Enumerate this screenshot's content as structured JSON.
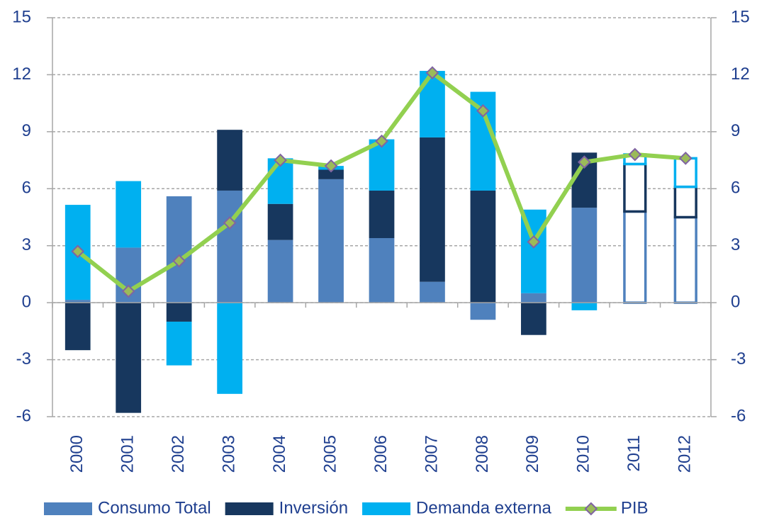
{
  "chart_data": {
    "type": "stacked-bar-line",
    "categories": [
      "2000",
      "2001",
      "2002",
      "2003",
      "2004",
      "2005",
      "2006",
      "2007",
      "2008",
      "2009",
      "2010",
      "2011",
      "2012"
    ],
    "outlined": [
      false,
      false,
      false,
      false,
      false,
      false,
      false,
      false,
      false,
      false,
      false,
      true,
      true
    ],
    "series": [
      {
        "name": "Consumo Total",
        "type": "bar",
        "color": "#4f81bd",
        "values": [
          0.15,
          2.9,
          5.6,
          5.9,
          3.3,
          6.5,
          3.4,
          1.1,
          -0.9,
          0.5,
          5.0,
          4.8,
          4.5
        ]
      },
      {
        "name": "Inversión",
        "type": "bar",
        "color": "#17375e",
        "values": [
          -2.5,
          -5.8,
          -1.0,
          3.2,
          1.9,
          0.5,
          2.5,
          7.6,
          5.9,
          -1.7,
          2.9,
          2.5,
          1.6
        ]
      },
      {
        "name": "Demanda externa",
        "type": "bar",
        "color": "#00b0f0",
        "values": [
          5.0,
          3.5,
          -2.3,
          -4.8,
          2.4,
          0.2,
          2.7,
          3.5,
          5.2,
          4.4,
          -0.4,
          0.5,
          1.5
        ]
      },
      {
        "name": "PIB",
        "type": "line",
        "axis": "y2",
        "color": "#92d050",
        "marker_fill": "#9bbb59",
        "marker_edge": "#8064a2",
        "values": [
          2.7,
          0.6,
          2.2,
          4.2,
          7.5,
          7.2,
          8.5,
          12.1,
          10.1,
          3.2,
          7.4,
          7.8,
          7.6
        ]
      }
    ],
    "ylim": [
      -6,
      15
    ],
    "yticks": [
      -6,
      -3,
      0,
      3,
      6,
      9,
      12,
      15
    ],
    "y2lim": [
      -6,
      15
    ],
    "y2ticks": [
      -6,
      -3,
      0,
      3,
      6,
      9,
      12,
      15
    ],
    "grid": true,
    "legend": "bottom"
  }
}
